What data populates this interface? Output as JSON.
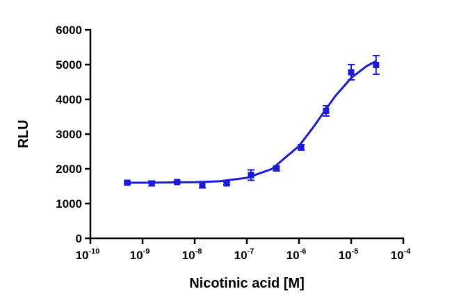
{
  "chart_data": {
    "type": "scatter",
    "xlabel": "Nicotinic acid [M]",
    "ylabel": "RLU",
    "xscale": "log",
    "color": "#1a1adb",
    "xlim": [
      1e-10,
      0.0001
    ],
    "xticks": [
      {
        "value": 1e-10,
        "label": "10",
        "exponent": "-10"
      },
      {
        "value": 1e-09,
        "label": "10",
        "exponent": "-9"
      },
      {
        "value": 1e-08,
        "label": "10",
        "exponent": "-8"
      },
      {
        "value": 1e-07,
        "label": "10",
        "exponent": "-7"
      },
      {
        "value": 1e-06,
        "label": "10",
        "exponent": "-6"
      },
      {
        "value": 1e-05,
        "label": "10",
        "exponent": "-5"
      },
      {
        "value": 0.0001,
        "label": "10",
        "exponent": "-4"
      }
    ],
    "ylim": [
      0,
      6000
    ],
    "yticks": [
      0,
      1000,
      2000,
      3000,
      4000,
      5000,
      6000
    ],
    "series": [
      {
        "x": [
          5.1e-10,
          1.5e-09,
          4.6e-09,
          1.4e-08,
          4.1e-08,
          1.2e-07,
          3.7e-07,
          1.1e-06,
          3.3e-06,
          1e-05,
          3e-05
        ],
        "values": [
          1600,
          1580,
          1620,
          1530,
          1580,
          1820,
          2010,
          2620,
          3670,
          4780,
          4990
        ],
        "errors": [
          30,
          70,
          30,
          80,
          40,
          150,
          70,
          80,
          150,
          220,
          270
        ]
      }
    ],
    "fit": {
      "x": [
        5e-10,
        1e-09,
        1e-08,
        3e-08,
        1e-07,
        3e-07,
        1e-06,
        2e-06,
        3e-06,
        5e-06,
        1e-05,
        2e-05,
        3e-05
      ],
      "values": [
        1601,
        1601,
        1615,
        1643,
        1741,
        1993,
        2656,
        3252,
        3636,
        4100,
        4616,
        4963,
        5097
      ]
    }
  }
}
